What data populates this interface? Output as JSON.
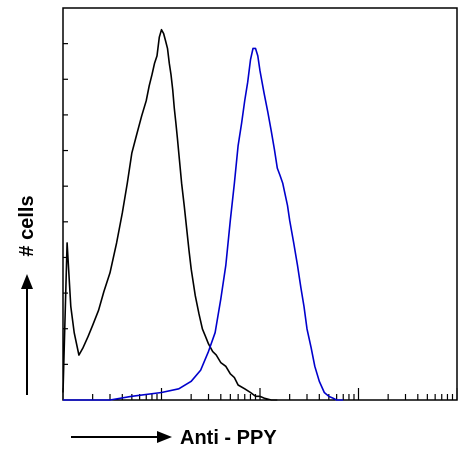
{
  "chart_data": {
    "type": "line",
    "title": "",
    "xlabel": "Anti - PPY",
    "ylabel": "# cells",
    "x_scale": "log",
    "xlim": [
      1,
      10000
    ],
    "ylim": [
      0,
      100
    ],
    "grid": false,
    "legend": "none",
    "series": [
      {
        "color": "#000000",
        "x": [
          1,
          1.1,
          1.2,
          1.3,
          1.45,
          1.6,
          1.8,
          2,
          2.3,
          2.6,
          3,
          3.5,
          4,
          4.5,
          5,
          5.6,
          6.3,
          7,
          7.5,
          8,
          8.5,
          9,
          9.5,
          10,
          10.5,
          11,
          11.5,
          12,
          12.5,
          13,
          13.5,
          14,
          14.5,
          15,
          15.5,
          16,
          17,
          18,
          19,
          20,
          22,
          24,
          26,
          28,
          30,
          33,
          36,
          40,
          45,
          50,
          55,
          60,
          70,
          80,
          90,
          100,
          110,
          130,
          150
        ],
        "y": [
          2,
          42,
          25,
          18,
          12,
          14,
          17,
          20,
          24,
          29,
          34,
          42,
          50,
          58,
          66,
          71,
          76,
          80,
          84,
          87,
          90,
          92,
          97,
          99,
          98,
          96,
          94,
          90,
          87,
          83,
          78,
          74,
          70,
          66,
          62,
          58,
          52,
          46,
          40,
          35,
          28,
          23,
          19,
          17,
          15,
          13,
          12,
          10,
          9,
          7,
          6,
          4,
          3,
          2,
          1,
          1,
          0.5,
          0,
          0
        ]
      },
      {
        "color": "#0000cc",
        "x": [
          1,
          3,
          5,
          10,
          15,
          20,
          25,
          30,
          35,
          40,
          45,
          50,
          55,
          60,
          65,
          70,
          75,
          80,
          85,
          90,
          95,
          100,
          110,
          120,
          130,
          140,
          150,
          160,
          170,
          180,
          190,
          200,
          220,
          240,
          260,
          280,
          300,
          330,
          360,
          400,
          450,
          500,
          550,
          600,
          650,
          700
        ],
        "y": [
          0,
          0,
          1,
          2,
          3,
          5,
          8,
          13,
          18,
          27,
          36,
          48,
          58,
          68,
          74,
          80,
          85,
          91,
          94,
          94,
          92,
          88,
          82,
          77,
          72,
          67,
          62,
          60,
          58,
          55,
          52,
          48,
          42,
          36,
          30,
          25,
          19,
          14,
          9,
          5,
          2,
          1,
          0.5,
          0,
          0,
          0
        ]
      }
    ]
  }
}
